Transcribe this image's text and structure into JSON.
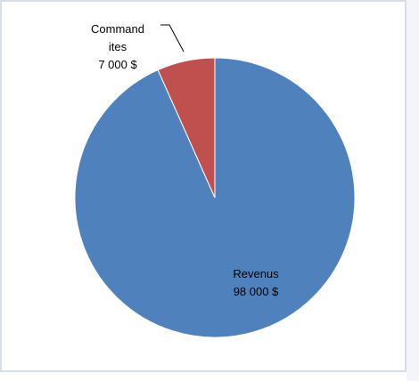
{
  "chart_data": {
    "type": "pie",
    "slices": [
      {
        "name": "Revenus",
        "value": 98000,
        "label_lines": [
          "Revenus",
          "98 000 $"
        ],
        "color": "#4F81BD"
      },
      {
        "name": "Command ites",
        "value": 7000,
        "label_lines": [
          "Command",
          "ites",
          "7 000 $"
        ],
        "color": "#C0504D"
      }
    ],
    "start_angle_deg": 0,
    "direction": "clockwise",
    "legend": "none"
  }
}
